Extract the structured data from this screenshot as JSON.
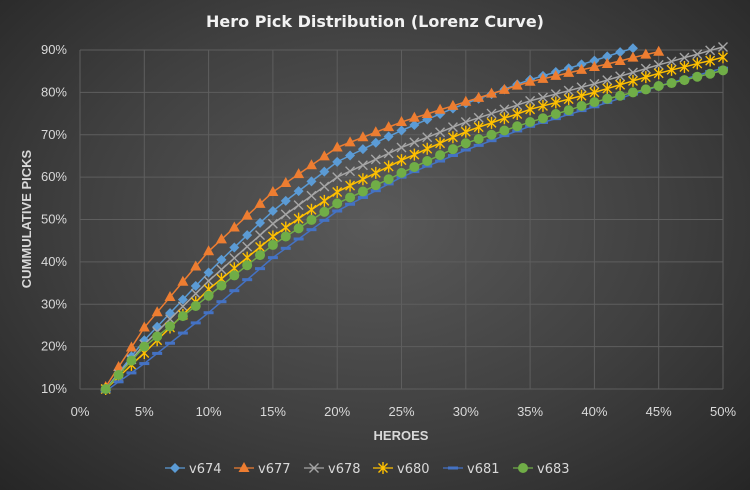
{
  "chart_data": {
    "type": "line",
    "title": "Hero Pick Distribution (Lorenz Curve)",
    "xlabel": "HEROES",
    "ylabel": "CUMMULATIVE PICKS",
    "xlim": [
      0,
      50
    ],
    "ylim": [
      10,
      90
    ],
    "x_ticks": [
      "0%",
      "5%",
      "10%",
      "15%",
      "20%",
      "25%",
      "30%",
      "35%",
      "40%",
      "45%",
      "50%"
    ],
    "y_ticks": [
      "10%",
      "20%",
      "30%",
      "40%",
      "50%",
      "60%",
      "70%",
      "80%",
      "90%"
    ],
    "grid": true,
    "legend_position": "bottom",
    "x_start": 2,
    "x_step": 1,
    "series": [
      {
        "name": "v674",
        "color": "#5b9bd5",
        "marker": "diamond",
        "values": [
          10,
          13.8,
          17.7,
          21.5,
          24.7,
          27.9,
          31.1,
          34.3,
          37.5,
          40.5,
          43.4,
          46.3,
          49.2,
          52,
          54.4,
          56.7,
          59,
          61.3,
          63.6,
          65.1,
          66.6,
          68.1,
          69.6,
          71,
          72.3,
          73.6,
          74.9,
          76.2,
          77.4,
          78.5,
          79.6,
          80.7,
          81.9,
          83,
          83.9,
          84.8,
          85.7,
          86.6,
          87.5,
          88.5,
          89.5,
          90.4
        ]
      },
      {
        "name": "v677",
        "color": "#ed7d31",
        "marker": "triangle",
        "values": [
          10.5,
          15.2,
          19.8,
          24.5,
          28.1,
          31.7,
          35.3,
          38.9,
          42.5,
          45.3,
          48.1,
          50.9,
          53.7,
          56.5,
          58.6,
          60.7,
          62.8,
          64.9,
          67,
          68.2,
          69.4,
          70.6,
          71.8,
          73,
          74,
          74.9,
          75.9,
          76.8,
          77.8,
          78.7,
          79.7,
          80.6,
          81.6,
          82.5,
          83.2,
          83.9,
          84.6,
          85.3,
          86,
          86.7,
          87.4,
          88.2,
          88.9,
          89.6
        ]
      },
      {
        "name": "v678",
        "color": "#a5a5a5",
        "marker": "x",
        "values": [
          10,
          13.5,
          17,
          20.5,
          23.5,
          26.5,
          29.5,
          32.5,
          35.5,
          38.2,
          40.9,
          43.6,
          46.3,
          49,
          51.2,
          53.4,
          55.6,
          57.8,
          60,
          61.4,
          62.8,
          64.2,
          65.6,
          67,
          68.2,
          69.4,
          70.6,
          71.8,
          73,
          74,
          75,
          76,
          77,
          78,
          78.8,
          79.6,
          80.4,
          81.2,
          82,
          82.9,
          83.8,
          84.7,
          85.6,
          86.5,
          87.3,
          88.2,
          89,
          89.9,
          90.7
        ]
      },
      {
        "name": "v680",
        "color": "#ffc000",
        "marker": "star",
        "values": [
          10,
          12.8,
          15.7,
          18.5,
          21.5,
          24.5,
          27.5,
          30.5,
          33.5,
          36,
          38.5,
          41,
          43.5,
          46,
          48.1,
          50.2,
          52.3,
          54.4,
          56.5,
          58,
          59.5,
          61,
          62.5,
          64,
          65.3,
          66.7,
          68,
          69.4,
          70.7,
          71.8,
          72.8,
          73.9,
          74.9,
          76,
          76.8,
          77.6,
          78.4,
          79.2,
          80,
          80.9,
          81.8,
          82.7,
          83.6,
          84.5,
          85.3,
          86,
          86.8,
          87.5,
          88.3
        ]
      },
      {
        "name": "v681",
        "color": "#4472c4",
        "marker": "dash",
        "values": [
          9.5,
          11.7,
          13.8,
          16,
          18.4,
          20.8,
          23.2,
          25.6,
          28,
          30.6,
          33.2,
          35.8,
          38.4,
          41,
          43.2,
          45.4,
          47.6,
          49.8,
          52,
          53.6,
          55.2,
          56.8,
          58.4,
          60,
          61.3,
          62.6,
          63.8,
          65.1,
          66.4,
          67.5,
          68.6,
          69.8,
          70.9,
          72,
          72.9,
          73.8,
          74.8,
          75.7,
          76.6,
          77.6,
          78.6,
          79.6,
          80.5,
          81.5,
          82.3,
          83.2,
          84,
          84.9,
          85.7
        ]
      },
      {
        "name": "v683",
        "color": "#70ad47",
        "marker": "circle",
        "values": [
          10,
          13.3,
          16.7,
          20,
          22.4,
          24.8,
          27.2,
          29.6,
          32,
          34.4,
          36.8,
          39.2,
          41.6,
          44,
          46,
          47.9,
          49.9,
          51.8,
          53.8,
          55.2,
          56.6,
          58.1,
          59.5,
          61,
          62.4,
          63.8,
          65.2,
          66.6,
          68,
          69,
          70,
          71,
          72,
          73,
          73.9,
          74.9,
          75.8,
          76.8,
          77.7,
          78.5,
          79.2,
          80,
          80.7,
          81.5,
          82.2,
          82.9,
          83.7,
          84.4,
          85.2
        ]
      }
    ]
  }
}
